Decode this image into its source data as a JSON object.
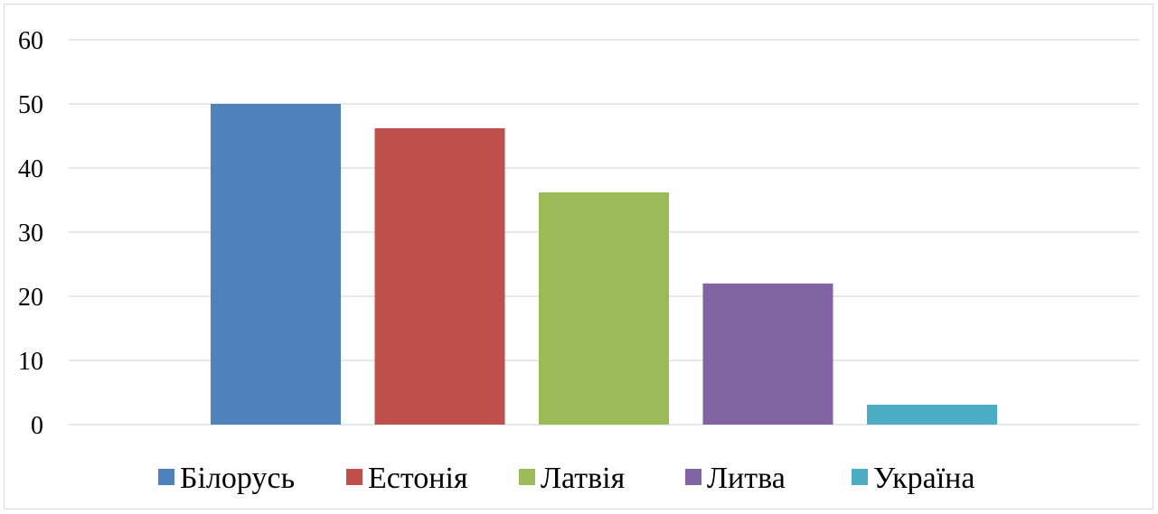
{
  "chart_data": {
    "type": "bar",
    "title": "",
    "xlabel": "",
    "ylabel": "",
    "ylim": [
      0,
      60
    ],
    "yticks": [
      0,
      10,
      20,
      30,
      40,
      50,
      60
    ],
    "grid": true,
    "legend_position": "bottom",
    "series": [
      {
        "name": "Білорусь",
        "value": 50,
        "color": "#4F81BD"
      },
      {
        "name": "Естонія",
        "value": 46.2,
        "color": "#C0504D"
      },
      {
        "name": "Латвія",
        "value": 36.2,
        "color": "#9BBB59"
      },
      {
        "name": "Литва",
        "value": 22,
        "color": "#8064A2"
      },
      {
        "name": "Україна",
        "value": 3.1,
        "color": "#4BACC6"
      }
    ]
  }
}
